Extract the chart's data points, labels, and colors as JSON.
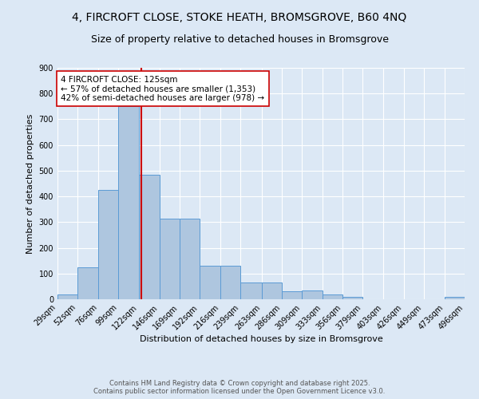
{
  "title_line1": "4, FIRCROFT CLOSE, STOKE HEATH, BROMSGROVE, B60 4NQ",
  "title_line2": "Size of property relative to detached houses in Bromsgrove",
  "xlabel": "Distribution of detached houses by size in Bromsgrove",
  "ylabel": "Number of detached properties",
  "bin_labels": [
    "29sqm",
    "52sqm",
    "76sqm",
    "99sqm",
    "122sqm",
    "146sqm",
    "169sqm",
    "192sqm",
    "216sqm",
    "239sqm",
    "263sqm",
    "286sqm",
    "309sqm",
    "333sqm",
    "356sqm",
    "379sqm",
    "403sqm",
    "426sqm",
    "449sqm",
    "473sqm",
    "496sqm"
  ],
  "bar_values": [
    20,
    125,
    425,
    750,
    485,
    315,
    315,
    130,
    130,
    65,
    65,
    30,
    35,
    20,
    10,
    0,
    0,
    0,
    0,
    10,
    0
  ],
  "bin_edges": [
    29,
    52,
    76,
    99,
    122,
    146,
    169,
    192,
    216,
    239,
    263,
    286,
    309,
    333,
    356,
    379,
    403,
    426,
    449,
    473,
    496
  ],
  "bar_color": "#aec6df",
  "bar_edge_color": "#5b9bd5",
  "vline_x": 125,
  "vline_color": "#cc0000",
  "annotation_text": "4 FIRCROFT CLOSE: 125sqm\n← 57% of detached houses are smaller (1,353)\n42% of semi-detached houses are larger (978) →",
  "annotation_box_color": "white",
  "annotation_box_edge": "#cc0000",
  "ylim": [
    0,
    900
  ],
  "yticks": [
    0,
    100,
    200,
    300,
    400,
    500,
    600,
    700,
    800,
    900
  ],
  "background_color": "#dce8f5",
  "footer_line1": "Contains HM Land Registry data © Crown copyright and database right 2025.",
  "footer_line2": "Contains public sector information licensed under the Open Government Licence v3.0.",
  "title_fontsize": 10,
  "subtitle_fontsize": 9,
  "annotation_fontsize": 7.5,
  "axis_label_fontsize": 8,
  "tick_fontsize": 7,
  "footer_fontsize": 6
}
